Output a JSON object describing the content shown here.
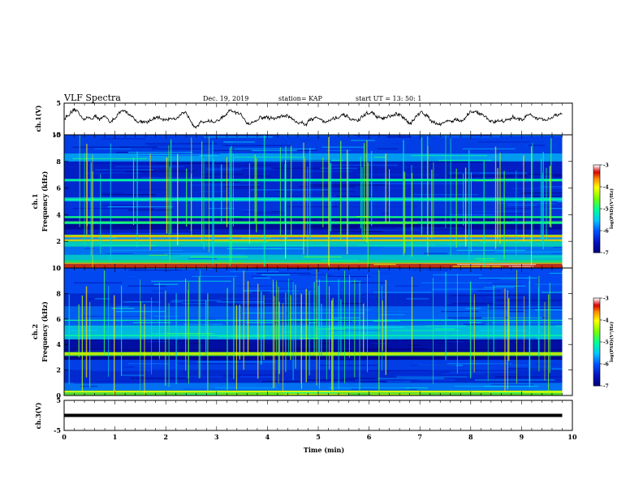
{
  "header": {
    "title": "VLF Spectra",
    "date": "Dec. 19, 2019",
    "station": "station= KAP",
    "start": "start  UT  =   13: 50: 1"
  },
  "colors": {
    "spectrogram_background": "#0a1fa0",
    "trace": "#000000"
  },
  "colorscale": {
    "label": "log(PSD)(V²/Hz)",
    "ticks": [
      "-3",
      "-4",
      "-5",
      "-6",
      "-7"
    ],
    "colors": [
      "#ffffff",
      "#d40000",
      "#ff8c00",
      "#ffff00",
      "#00ff00",
      "#00ffff",
      "#0050ff",
      "#00007a"
    ]
  },
  "chart_data": [
    {
      "type": "line",
      "panel": "ch1-waveform",
      "ylabel": "ch.1(V)",
      "ylim": [
        -5,
        5
      ],
      "yticks": [
        "5",
        "-5"
      ],
      "xlim": [
        0,
        10
      ],
      "x_end": 9.8,
      "trace": {
        "mean": 0.2,
        "amplitude": 2.5
      }
    },
    {
      "type": "heatmap",
      "panel": "ch1-spectrogram",
      "ylabel_top": "ch.1",
      "ylabel": "Frequency (kHz)",
      "ylim": [
        0,
        10
      ],
      "yticks": [
        "0",
        "2",
        "4",
        "6",
        "8",
        "10"
      ],
      "xlim": [
        0,
        10
      ],
      "x_end": 9.8,
      "bands": [
        {
          "f0": 0.0,
          "f1": 0.3,
          "level": -3.4
        },
        {
          "f0": 0.3,
          "f1": 0.6,
          "level": -4.9
        },
        {
          "f0": 0.6,
          "f1": 1.0,
          "level": -5.3
        },
        {
          "f0": 1.0,
          "f1": 1.6,
          "level": -5.8
        },
        {
          "f0": 1.6,
          "f1": 2.0,
          "level": -5.2
        },
        {
          "f0": 2.0,
          "f1": 2.15,
          "level": -4.4
        },
        {
          "f0": 2.15,
          "f1": 2.3,
          "level": -5.6
        },
        {
          "f0": 2.3,
          "f1": 2.5,
          "level": -4.3
        },
        {
          "f0": 2.5,
          "f1": 2.9,
          "level": -6.4
        },
        {
          "f0": 2.9,
          "f1": 3.3,
          "level": -6.8
        },
        {
          "f0": 3.3,
          "f1": 3.5,
          "level": -5.0
        },
        {
          "f0": 3.5,
          "f1": 3.75,
          "level": -6.6
        },
        {
          "f0": 3.75,
          "f1": 3.9,
          "level": -5.0
        },
        {
          "f0": 3.9,
          "f1": 5.0,
          "level": -6.2
        },
        {
          "f0": 5.0,
          "f1": 5.3,
          "level": -5.4
        },
        {
          "f0": 5.3,
          "f1": 6.5,
          "level": -6.3
        },
        {
          "f0": 6.5,
          "f1": 6.7,
          "level": -5.2
        },
        {
          "f0": 6.7,
          "f1": 8.0,
          "level": -6.4
        },
        {
          "f0": 8.0,
          "f1": 8.6,
          "level": -5.6
        },
        {
          "f0": 8.6,
          "f1": 10.0,
          "level": -6.1
        }
      ],
      "lines": [
        {
          "f": 0.35,
          "level": -3.6
        },
        {
          "f": 2.1,
          "level": -3.8
        },
        {
          "f": 2.35,
          "level": -3.7
        },
        {
          "f": 3.45,
          "level": -4.8
        },
        {
          "f": 3.8,
          "level": -4.9
        },
        {
          "f": 5.15,
          "level": -5.0
        },
        {
          "f": 6.6,
          "level": -5.0
        }
      ]
    },
    {
      "type": "heatmap",
      "panel": "ch2-spectrogram",
      "ylabel_top": "ch.2",
      "ylabel": "Frequency (kHz)",
      "ylim": [
        0,
        10
      ],
      "yticks": [
        "0",
        "2",
        "4",
        "6",
        "8",
        "10"
      ],
      "xlim": [
        0,
        10
      ],
      "x_end": 9.8,
      "bands": [
        {
          "f0": 0.0,
          "f1": 0.4,
          "level": -4.6
        },
        {
          "f0": 0.4,
          "f1": 1.0,
          "level": -5.8
        },
        {
          "f0": 1.0,
          "f1": 2.0,
          "level": -6.3
        },
        {
          "f0": 2.0,
          "f1": 2.8,
          "level": -6.1
        },
        {
          "f0": 2.8,
          "f1": 3.1,
          "level": -6.9
        },
        {
          "f0": 3.1,
          "f1": 3.4,
          "level": -4.6
        },
        {
          "f0": 3.4,
          "f1": 3.7,
          "level": -6.8
        },
        {
          "f0": 3.7,
          "f1": 4.4,
          "level": -6.7
        },
        {
          "f0": 4.4,
          "f1": 5.5,
          "level": -5.4
        },
        {
          "f0": 5.5,
          "f1": 7.0,
          "level": -5.9
        },
        {
          "f0": 7.0,
          "f1": 8.0,
          "level": -6.3
        },
        {
          "f0": 8.0,
          "f1": 10.0,
          "level": -6.0
        }
      ],
      "lines": [
        {
          "f": 0.3,
          "level": -4.0
        },
        {
          "f": 3.25,
          "level": -3.9
        },
        {
          "f": 3.35,
          "level": -4.3
        },
        {
          "f": 4.7,
          "level": -5.0
        },
        {
          "f": 5.9,
          "level": -5.1
        }
      ]
    },
    {
      "type": "line",
      "panel": "ch3-waveform",
      "ylabel": "ch.3(V)",
      "ylim": [
        -5,
        5
      ],
      "yticks": [
        "5",
        "-5"
      ],
      "xlim": [
        0,
        10
      ],
      "x_end": 9.8,
      "xlabel": "Time  (min)",
      "xticks": [
        "0",
        "1",
        "2",
        "3",
        "4",
        "5",
        "6",
        "7",
        "8",
        "9",
        "10"
      ],
      "trace": {
        "mean": 0,
        "amplitude": 0.1
      }
    }
  ]
}
